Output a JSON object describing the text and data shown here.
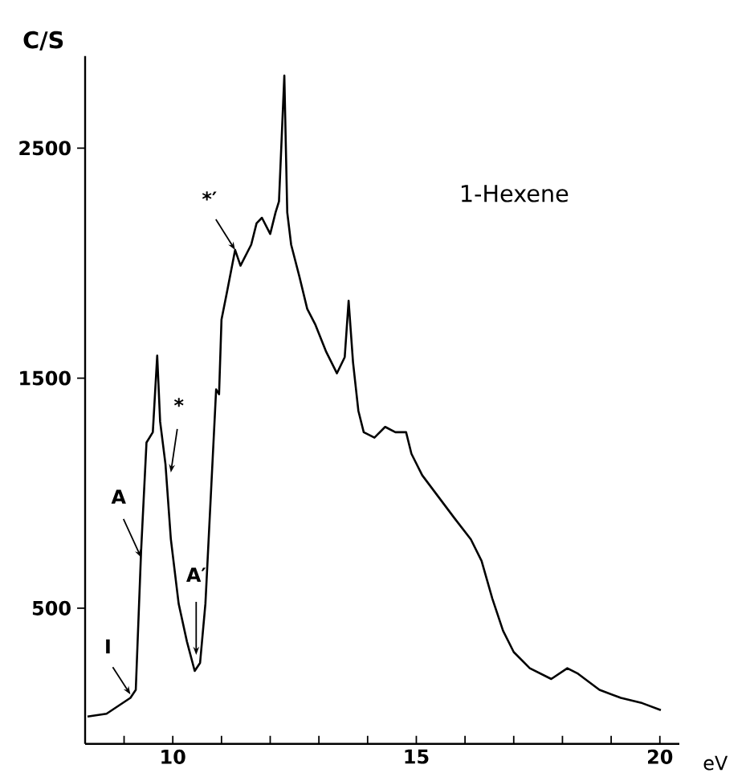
{
  "chart_data": {
    "type": "line",
    "title": "1-Hexene",
    "xlabel": "eV",
    "ylabel": "C/S",
    "color": "#000000",
    "x": [
      8.25,
      8.64,
      9.13,
      9.24,
      9.35,
      9.46,
      9.59,
      9.68,
      9.74,
      9.85,
      9.96,
      10.12,
      10.29,
      10.45,
      10.56,
      10.67,
      10.78,
      10.89,
      10.95,
      11.0,
      11.11,
      11.28,
      11.39,
      11.61,
      11.72,
      11.83,
      12.0,
      12.11,
      12.18,
      12.29,
      12.35,
      12.43,
      12.6,
      12.76,
      12.93,
      13.15,
      13.37,
      13.53,
      13.61,
      13.7,
      13.81,
      13.92,
      14.14,
      14.36,
      14.57,
      14.79,
      14.9,
      15.12,
      15.45,
      15.78,
      16.12,
      16.34,
      16.56,
      16.78,
      17.0,
      17.33,
      17.77,
      18.1,
      18.32,
      18.76,
      19.2,
      19.64,
      20.02
    ],
    "values": [
      29,
      41,
      110,
      145,
      752,
      1220,
      1265,
      1598,
      1311,
      1125,
      800,
      520,
      355,
      227,
      262,
      520,
      985,
      1451,
      1430,
      1754,
      1871,
      2057,
      1989,
      2080,
      2173,
      2197,
      2127,
      2220,
      2268,
      2815,
      2220,
      2080,
      1941,
      1801,
      1731,
      1614,
      1521,
      1591,
      1836,
      1570,
      1358,
      1265,
      1241,
      1288,
      1265,
      1265,
      1171,
      1078,
      985,
      892,
      799,
      705,
      542,
      402,
      309,
      239,
      192,
      239,
      215,
      145,
      110,
      87,
      57
    ],
    "xlim": [
      8.2,
      20.4
    ],
    "ylim": [
      -90,
      2900
    ],
    "xticks": [
      {
        "value": 9,
        "label": null
      },
      10,
      {
        "value": 11,
        "label": null
      },
      {
        "value": 12,
        "label": null
      },
      {
        "value": 13,
        "label": null
      },
      {
        "value": 14,
        "label": null
      },
      15,
      {
        "value": 16,
        "label": null
      },
      {
        "value": 17,
        "label": null
      },
      {
        "value": 18,
        "label": null
      },
      {
        "value": 19,
        "label": null
      },
      20
    ],
    "yticks": [
      500,
      1500,
      2500
    ],
    "annotations": [
      {
        "text": "I",
        "x": 9.13,
        "y": 125
      },
      {
        "text": "A",
        "x": 9.35,
        "y": 720
      },
      {
        "text": "*",
        "x": 9.96,
        "y": 1090
      },
      {
        "text": "A′",
        "x": 10.48,
        "y": 297
      },
      {
        "text": "*′",
        "x": 11.28,
        "y": 2057
      }
    ]
  }
}
